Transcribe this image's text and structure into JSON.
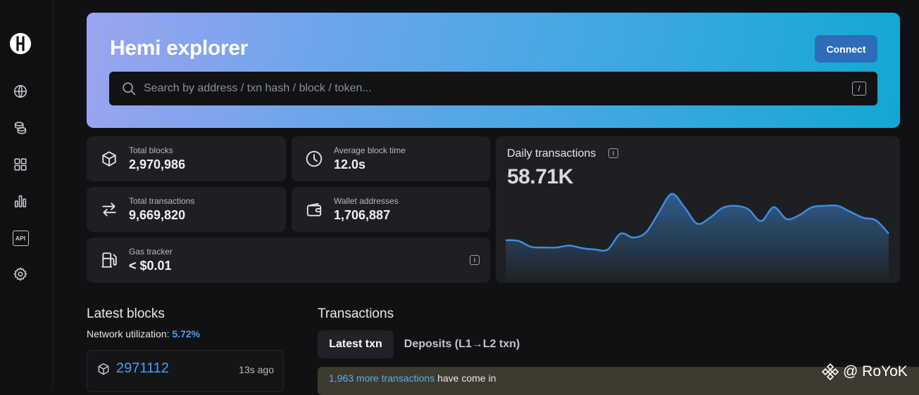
{
  "app": {
    "title": "Hemi explorer"
  },
  "header": {
    "connect_label": "Connect"
  },
  "search": {
    "placeholder": "Search by address / txn hash / block / token...",
    "shortcut": "/"
  },
  "sidebar": {
    "items": [
      {
        "icon": "globe-icon"
      },
      {
        "icon": "coins-icon"
      },
      {
        "icon": "grid-icon"
      },
      {
        "icon": "bar-chart-icon"
      },
      {
        "icon": "api-icon",
        "label": "API"
      },
      {
        "icon": "gear-icon"
      }
    ]
  },
  "stats": {
    "total_blocks": {
      "label": "Total blocks",
      "value": "2,970,986"
    },
    "avg_block_time": {
      "label": "Average block time",
      "value": "12.0s"
    },
    "total_transactions": {
      "label": "Total transactions",
      "value": "9,669,820"
    },
    "wallet_addresses": {
      "label": "Wallet addresses",
      "value": "1,706,887"
    },
    "gas_tracker": {
      "label": "Gas tracker",
      "value": "< $0.01"
    }
  },
  "daily": {
    "title": "Daily transactions",
    "value": "58.71K"
  },
  "chart_data": {
    "type": "area",
    "title": "Daily transactions",
    "values": [
      48,
      47,
      38,
      37,
      37,
      40,
      36,
      34,
      34,
      58,
      52,
      60,
      90,
      118,
      98,
      73,
      82,
      97,
      100,
      95,
      77,
      98,
      80,
      86,
      98,
      100,
      100,
      91,
      82,
      78,
      58
    ],
    "color": "#3d8ee0"
  },
  "latest_blocks": {
    "title": "Latest blocks",
    "util_label": "Network utilization: ",
    "util_value": "5.72%",
    "block": {
      "number": "2971112",
      "age": "13s ago"
    }
  },
  "transactions": {
    "title": "Transactions",
    "tabs": [
      "Latest txn",
      "Deposits (L1→L2 txn)"
    ],
    "notice_link": "1,963 more transactions",
    "notice_text": " have come in"
  },
  "watermark": {
    "text": "@ RoYoK"
  }
}
